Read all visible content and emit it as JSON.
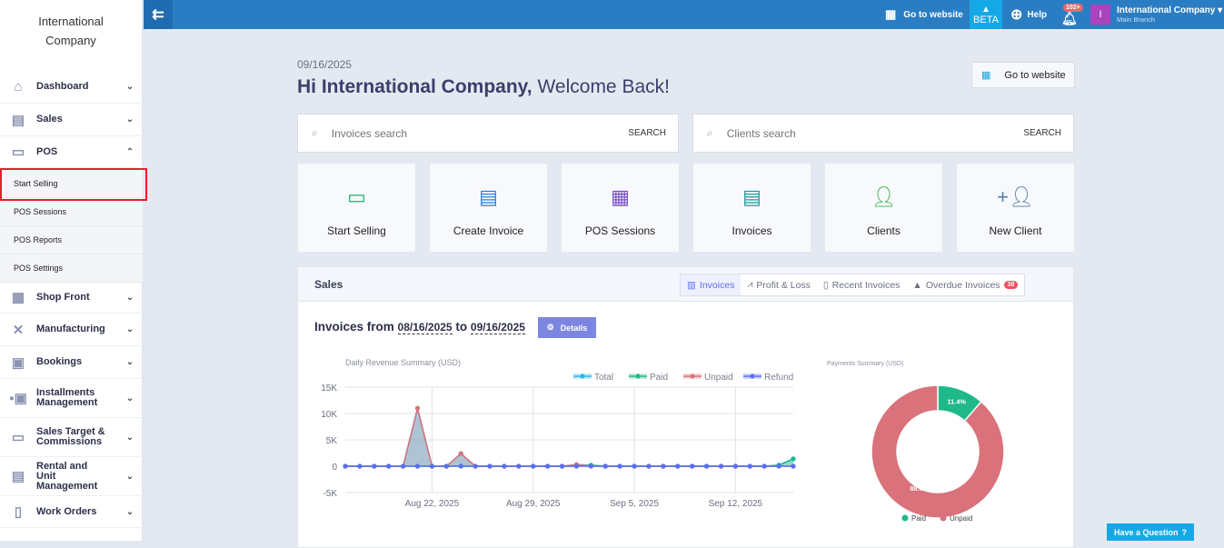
{
  "brand": {
    "name_line1": "International",
    "name_line2": "Company"
  },
  "sidebar": {
    "items": [
      {
        "label": "Dashboard",
        "icon": "home-icon"
      },
      {
        "label": "Sales",
        "icon": "sales-icon"
      },
      {
        "label": "POS",
        "icon": "pos-icon",
        "expanded": true
      },
      {
        "label": "Shop Front",
        "icon": "store-icon"
      },
      {
        "label": "Manufacturing",
        "icon": "tools-icon"
      },
      {
        "label": "Bookings",
        "icon": "calendar-icon"
      },
      {
        "label": "Installments Management",
        "icon": "installments-icon"
      },
      {
        "label": "Sales Target & Commissions",
        "icon": "money-icon"
      },
      {
        "label": "Rental and Unit Management",
        "icon": "rental-icon"
      },
      {
        "label": "Work Orders",
        "icon": "clipboard-icon"
      }
    ],
    "pos_sub": [
      "Start Selling",
      "POS Sessions",
      "POS Reports",
      "POS Settings"
    ]
  },
  "topbar": {
    "go_to_website": "Go to website",
    "beta": "BETA",
    "help": "Help",
    "notifications": "102+",
    "company": "International Company",
    "branch": "Main Branch",
    "avatar_letter": "I"
  },
  "main": {
    "date": "09/16/2025",
    "greeting_strong": "Hi International Company,",
    "greeting_rest": " Welcome Back!",
    "go_to_website": "Go to website",
    "invoices_search_placeholder": "Invoices search",
    "clients_search_placeholder": "Clients search",
    "search_label": "SEARCH",
    "quick_actions": [
      "Start Selling",
      "Create Invoice",
      "POS Sessions",
      "Invoices",
      "Clients",
      "New Client"
    ]
  },
  "sales": {
    "title": "Sales",
    "tabs": [
      "Invoices",
      "Profit & Loss",
      "Recent Invoices",
      "Overdue Invoices"
    ],
    "overdue_count": "38",
    "range_prefix": "Invoices from",
    "range_from": "08/16/2025",
    "range_to_word": "to",
    "range_to": "09/16/2025",
    "details": "Details"
  },
  "chart_data": [
    {
      "type": "line",
      "title": "Daily Revenue Summary (USD)",
      "x_start": "2025-08-16",
      "x_end": "2025-09-16",
      "xticks": [
        "Aug 22, 2025",
        "Aug 29, 2025",
        "Sep 5, 2025",
        "Sep 12, 2025"
      ],
      "yticks": [
        "15K",
        "10K",
        "5K",
        "0",
        "-5K"
      ],
      "ylim": [
        -5000,
        15000
      ],
      "legend": "top-right",
      "grid": true,
      "series": [
        {
          "name": "Total",
          "color": "#2bb6e8",
          "values": [
            0,
            0,
            0,
            0,
            0,
            11000,
            0,
            0,
            2400,
            0,
            0,
            0,
            0,
            0,
            0,
            0,
            300,
            200,
            0,
            0,
            0,
            0,
            0,
            0,
            0,
            0,
            0,
            0,
            0,
            0,
            200,
            1400
          ]
        },
        {
          "name": "Paid",
          "color": "#1fb888",
          "values": [
            0,
            0,
            0,
            0,
            0,
            0,
            0,
            0,
            0,
            0,
            0,
            0,
            0,
            0,
            0,
            0,
            0,
            200,
            0,
            0,
            0,
            0,
            0,
            0,
            0,
            0,
            0,
            0,
            0,
            0,
            200,
            1400
          ]
        },
        {
          "name": "Unpaid",
          "color": "#d9727a",
          "values": [
            0,
            0,
            0,
            0,
            0,
            11000,
            0,
            0,
            2400,
            0,
            0,
            0,
            0,
            0,
            0,
            0,
            300,
            0,
            0,
            0,
            0,
            0,
            0,
            0,
            0,
            0,
            0,
            0,
            0,
            0,
            0,
            0
          ]
        },
        {
          "name": "Refund",
          "color": "#5b6ff0",
          "values": [
            0,
            0,
            0,
            0,
            0,
            0,
            0,
            0,
            0,
            0,
            0,
            0,
            0,
            0,
            0,
            0,
            0,
            0,
            0,
            0,
            0,
            0,
            0,
            0,
            0,
            0,
            0,
            0,
            0,
            0,
            0,
            0
          ]
        }
      ]
    },
    {
      "type": "pie",
      "title": "Payments Summary (USD)",
      "categories": [
        "Paid",
        "Unpaid"
      ],
      "values": [
        11.4,
        88.6
      ],
      "labels": [
        "11.4%",
        "88.6%"
      ],
      "colors": [
        "#1fb888",
        "#d9727a"
      ],
      "legend": "bottom"
    }
  ],
  "help_button": "Have a Question"
}
